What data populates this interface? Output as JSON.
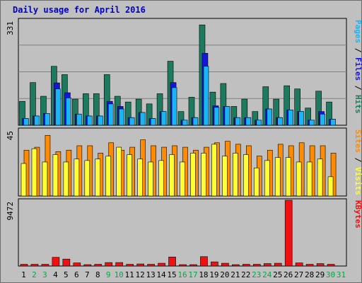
{
  "chart_data": {
    "type": "bar",
    "title": "Daily usage for April 2016",
    "categories": [
      "1",
      "2",
      "3",
      "4",
      "5",
      "6",
      "7",
      "8",
      "9",
      "10",
      "11",
      "12",
      "13",
      "14",
      "15",
      "16",
      "17",
      "18",
      "19",
      "20",
      "21",
      "22",
      "23",
      "24",
      "25",
      "26",
      "27",
      "28",
      "29",
      "30",
      "31"
    ],
    "weekend_days": [
      "2",
      "3",
      "9",
      "10",
      "16",
      "17",
      "23",
      "24",
      "30",
      "31"
    ],
    "panels": [
      {
        "name": "hits-files-pages",
        "ymax_label": "331",
        "ylim": [
          0,
          331
        ],
        "series": [
          {
            "name": "Hits",
            "color": "#1e7a5e",
            "values": [
              75,
              134,
              91,
              185,
              159,
              82,
              99,
              99,
              159,
              91,
              73,
              82,
              67,
              99,
              201,
              43,
              88,
              315,
              104,
              131,
              59,
              82,
              43,
              121,
              82,
              124,
              114,
              54,
              107,
              73,
              0
            ]
          },
          {
            "name": "Files",
            "color": "#1515e0",
            "values": [
              21,
              29,
              37,
              133,
              102,
              35,
              29,
              29,
              75,
              59,
              24,
              40,
              21,
              43,
              134,
              16,
              24,
              226,
              61,
              59,
              24,
              24,
              16,
              51,
              24,
              48,
              43,
              16,
              43,
              19,
              0
            ]
          },
          {
            "name": "Pages",
            "color": "#19b5f5",
            "values": [
              21,
              29,
              37,
              114,
              86,
              35,
              29,
              29,
              67,
              51,
              24,
              40,
              21,
              43,
              118,
              16,
              24,
              185,
              56,
              59,
              24,
              24,
              16,
              51,
              24,
              48,
              43,
              16,
              35,
              19,
              0
            ]
          }
        ]
      },
      {
        "name": "visits-sites",
        "ymax_label": "45",
        "ylim": [
          0,
          45
        ],
        "series": [
          {
            "name": "Sites",
            "color": "#ff8c00",
            "values": [
              31,
              33,
              41,
              30,
              31,
              34,
              34,
              29,
              36,
              31,
              33,
              38,
              34,
              33,
              34,
              33,
              31,
              33,
              36,
              37,
              35,
              34,
              27,
              31,
              35,
              34,
              36,
              34,
              34,
              29,
              0
            ]
          },
          {
            "name": "Visits",
            "color": "#ffff33",
            "values": [
              22,
              32,
              23,
              28,
              23,
              25,
              24,
              25,
              27,
              33,
              28,
              25,
              23,
              24,
              28,
              23,
              29,
              29,
              35,
              27,
              29,
              28,
              19,
              24,
              26,
              26,
              23,
              23,
              25,
              13,
              0
            ]
          }
        ]
      },
      {
        "name": "kbytes",
        "ymax_label": "9472",
        "ylim": [
          0,
          9472
        ],
        "series": [
          {
            "name": "KBytes",
            "color": "#ee1111",
            "values": [
              250,
              250,
              250,
              1250,
              1000,
              450,
              200,
              250,
              500,
              500,
              250,
              300,
              250,
              400,
              1300,
              200,
              200,
              1350,
              600,
              400,
              200,
              250,
              250,
              350,
              400,
              9472,
              450,
              250,
              350,
              250,
              0
            ]
          }
        ]
      }
    ],
    "right_labels": [
      {
        "panel": 0,
        "parts": [
          {
            "text": "Pages",
            "color": "#19b5f5"
          },
          {
            "text": " / ",
            "color": "#000000"
          },
          {
            "text": "Files",
            "color": "#1515e0"
          },
          {
            "text": " / ",
            "color": "#000000"
          },
          {
            "text": "Hits",
            "color": "#1e7a5e"
          }
        ]
      },
      {
        "panel": 1,
        "parts": [
          {
            "text": "Sites",
            "color": "#ff8c00"
          },
          {
            "text": " / ",
            "color": "#000000"
          },
          {
            "text": "Visits",
            "color": "#ffff33"
          }
        ]
      },
      {
        "panel": 2,
        "parts": [
          {
            "text": "KBytes",
            "color": "#ee1111"
          }
        ]
      }
    ],
    "colors": {
      "frame_bg": "#c0c0c0",
      "weekday_label": "#000000",
      "weekend_label": "#00aa44",
      "gridline": "#808080"
    }
  }
}
